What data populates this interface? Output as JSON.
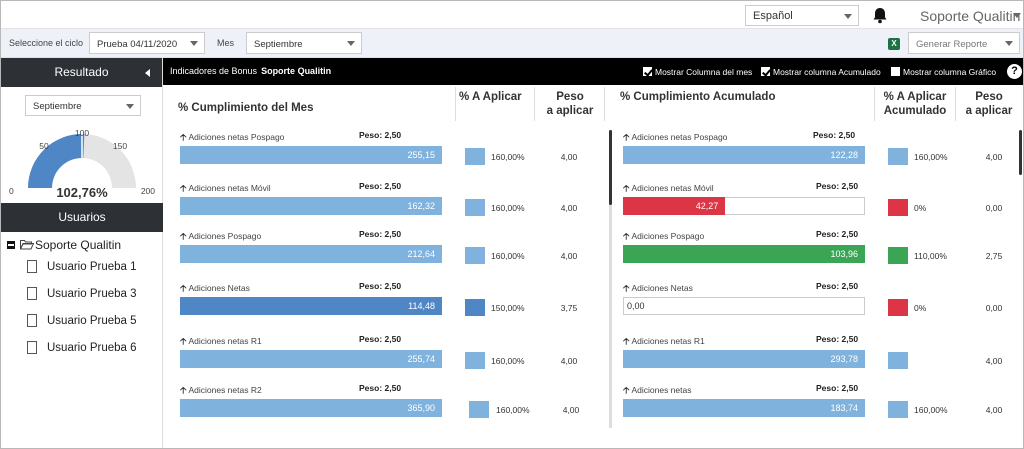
{
  "topbar": {
    "language": "Español",
    "user_name": "Soporte Qualitin"
  },
  "filters": {
    "cycle_label": "Seleccione el ciclo",
    "cycle_value": "Prueba 04/11/2020",
    "month_label": "Mes",
    "month_value": "Septiembre",
    "report_value": "Generar Reporte"
  },
  "sidebar": {
    "result_title": "Resultado",
    "month_value": "Septiembre",
    "gauge": {
      "value": 102.76,
      "value_text": "102,76%",
      "min": 0,
      "max": 200,
      "ticks": [
        "0",
        "50",
        "100",
        "150",
        "200"
      ]
    },
    "users_title": "Usuarios",
    "tree_root": "Soporte Qualitin",
    "users": [
      "Usuario Prueba  1",
      "Usuario Prueba  3",
      "Usuario Prueba  5",
      "Usuario Prueba  6"
    ]
  },
  "main": {
    "title_prefix": "Indicadores de Bonus",
    "title_user": "Soporte Qualitin",
    "check_month": "Mostrar Columna del mes",
    "check_accum": "Mostrar columna Acumulado",
    "check_chart": "Mostrar columna Gráfico",
    "help": "?",
    "headers": {
      "month": "% Cumplimiento del Mes",
      "apply": "% A Aplicar",
      "weight_1": "Peso",
      "weight_2": "a aplicar",
      "accum": "% Cumplimiento Acumulado",
      "apply_acc_1": "% A Aplicar",
      "apply_acc_2": "Acumulado",
      "weight_acc_1": "Peso",
      "weight_acc_2": "a aplicar"
    }
  },
  "colors": {
    "light_blue": "#7fb2dd",
    "dark_blue": "#4f86c6",
    "red": "#dc3545",
    "green": "#3aa655"
  },
  "rows": [
    {
      "label": "Adiciones netas Pospago",
      "peso": "Peso: 2,50",
      "month_value": 255.15,
      "month_text": "255,15",
      "month_color": "light",
      "apply_color": "light",
      "apply": "160,00%",
      "weight": "4,00",
      "acc_label": "Adiciones netas Pospago",
      "acc_peso": "Peso: 2,50",
      "acc_value": 122.28,
      "acc_text": "122,28",
      "acc_color": "light",
      "acc_apply_color": "light",
      "acc_apply": "160,00%",
      "acc_weight": "4,00"
    },
    {
      "label": "Adiciones netas  Móvil",
      "peso": "Peso: 2,50",
      "month_value": 162.32,
      "month_text": "162,32",
      "month_color": "light",
      "apply_color": "light",
      "apply": "160,00%",
      "weight": "4,00",
      "acc_label": "Adiciones netas  Móvil",
      "acc_peso": "Peso: 2,50",
      "acc_value": 42.27,
      "acc_text": "42,27",
      "acc_color": "red",
      "acc_apply_color": "red",
      "acc_apply": "0%",
      "acc_weight": "0,00"
    },
    {
      "label": "Adiciones  Pospago",
      "peso": "Peso: 2,50",
      "month_value": 212.64,
      "month_text": "212,64",
      "month_color": "light",
      "apply_color": "light",
      "apply": "160,00%",
      "weight": "4,00",
      "acc_label": "Adiciones  Pospago",
      "acc_peso": "Peso: 2,50",
      "acc_value": 103.96,
      "acc_text": "103,96",
      "acc_color": "green",
      "acc_apply_color": "green",
      "acc_apply": "110,00%",
      "acc_weight": "2,75"
    },
    {
      "label": "Adiciones Netas",
      "peso": "Peso: 2,50",
      "month_value": 114.48,
      "month_text": "114,48",
      "month_color": "dark",
      "apply_color": "dark",
      "apply": "150,00%",
      "weight": "3,75",
      "acc_label": "Adiciones Netas",
      "acc_peso": "Peso: 2,50",
      "acc_value": 0,
      "acc_text": "0,00",
      "acc_color": "none",
      "acc_apply_color": "red",
      "acc_apply": "0%",
      "acc_weight": "0,00"
    },
    {
      "label": "Adiciones netas R1",
      "peso": "Peso: 2,50",
      "month_value": 255.74,
      "month_text": "255,74",
      "month_color": "light",
      "apply_color": "light",
      "apply": "160,00%",
      "weight": "4,00",
      "acc_label": "Adiciones netas R1",
      "acc_peso": "Peso: 2,50",
      "acc_value": 293.78,
      "acc_text": "293,78",
      "acc_color": "light",
      "acc_apply_color": "light",
      "acc_apply": "",
      "acc_weight": "4,00"
    },
    {
      "label": "Adiciones netas  R2",
      "peso": "Peso: 2,50",
      "month_value": 365.9,
      "month_text": "365,90",
      "month_color": "light",
      "apply_color": "light",
      "apply": "160,00%",
      "weight": "4,00",
      "acc_label": "Adiciones netas",
      "acc_peso": "Peso: 2,50",
      "acc_value": 183.74,
      "acc_text": "183,74",
      "acc_color": "light",
      "acc_apply_color": "light",
      "acc_apply": "160,00%",
      "acc_weight": "4,00"
    }
  ]
}
